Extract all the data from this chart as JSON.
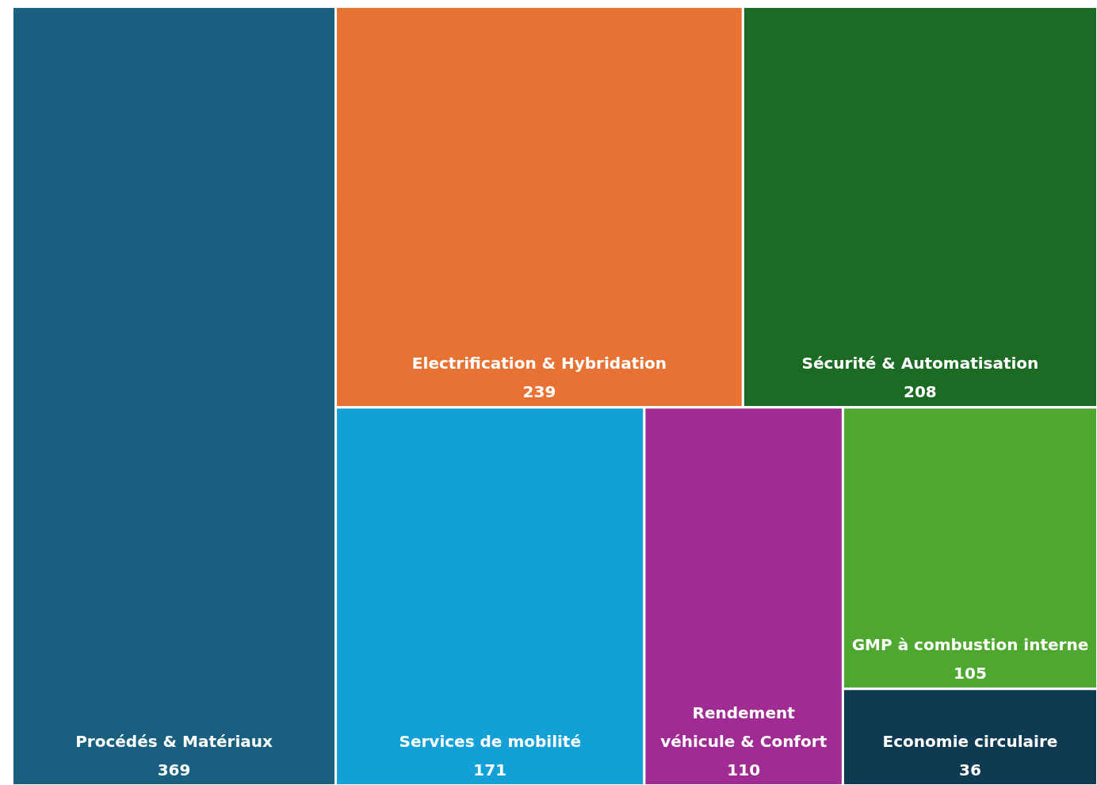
{
  "chart_data": {
    "type": "other",
    "categories": [
      "Procédés & Matériaux",
      "Electrification & Hybridation",
      "Sécurité & Automatisation",
      "Services de mobilité",
      "Rendement véhicule & Confort",
      "GMP à combustion interne",
      "Economie circulaire"
    ],
    "values": [
      369,
      239,
      208,
      171,
      110,
      105,
      36
    ],
    "colors": [
      "#185f80",
      "#e87234",
      "#1c6b24",
      "#12a0d7",
      "#a02b93",
      "#4ea72e",
      "#0e3a52"
    ],
    "data_labels": true
  }
}
